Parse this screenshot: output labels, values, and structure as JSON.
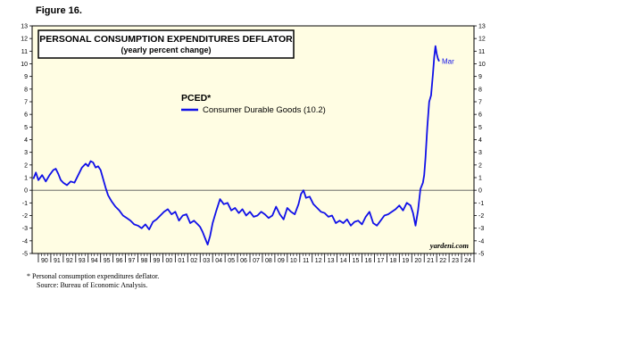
{
  "figure_label": "Figure 16.",
  "chart_data": {
    "type": "line",
    "title": "PERSONAL CONSUMPTION EXPENDITURES DEFLATOR",
    "subtitle": "(yearly percent change)",
    "legend_title": "PCED*",
    "xlabel": "",
    "ylabel": "",
    "ylim": [
      -5,
      13
    ],
    "xlim": [
      1989.5,
      2025.0
    ],
    "y_ticks": [
      -5,
      -4,
      -3,
      -2,
      -1,
      0,
      1,
      2,
      3,
      4,
      5,
      6,
      7,
      8,
      9,
      10,
      11,
      12,
      13
    ],
    "x_tick_labels": [
      "90",
      "91",
      "92",
      "93",
      "94",
      "95",
      "96",
      "97",
      "98",
      "99",
      "00",
      "01",
      "02",
      "03",
      "04",
      "05",
      "06",
      "07",
      "08",
      "09",
      "10",
      "11",
      "12",
      "13",
      "14",
      "15",
      "16",
      "17",
      "18",
      "19",
      "20",
      "21",
      "22",
      "23",
      "24"
    ],
    "zero_line": true,
    "legend_position": "top-center",
    "background_color": "#fffde3",
    "series": [
      {
        "name": "Consumer Durable Goods (10.2)",
        "color": "#1010e8",
        "x": [
          1989.6,
          1989.8,
          1990.0,
          1990.3,
          1990.6,
          1990.9,
          1991.2,
          1991.4,
          1991.6,
          1991.8,
          1992.0,
          1992.3,
          1992.6,
          1992.9,
          1993.2,
          1993.5,
          1993.8,
          1994.0,
          1994.2,
          1994.4,
          1994.6,
          1994.8,
          1995.0,
          1995.2,
          1995.4,
          1995.6,
          1995.9,
          1996.2,
          1996.5,
          1996.8,
          1997.1,
          1997.4,
          1997.7,
          1998.0,
          1998.3,
          1998.6,
          1998.9,
          1999.2,
          1999.5,
          1999.8,
          2000.1,
          2000.4,
          2000.7,
          2001.0,
          2001.3,
          2001.6,
          2001.9,
          2002.2,
          2002.5,
          2002.8,
          2003.0,
          2003.2,
          2003.4,
          2003.6,
          2003.8,
          2004.0,
          2004.3,
          2004.6,
          2004.9,
          2005.2,
          2005.5,
          2005.8,
          2006.1,
          2006.4,
          2006.7,
          2007.0,
          2007.3,
          2007.6,
          2007.9,
          2008.2,
          2008.5,
          2008.8,
          2009.1,
          2009.4,
          2009.7,
          2010.0,
          2010.3,
          2010.6,
          2010.9,
          2011.1,
          2011.3,
          2011.5,
          2011.8,
          2012.1,
          2012.4,
          2012.7,
          2013.0,
          2013.3,
          2013.6,
          2013.9,
          2014.2,
          2014.5,
          2014.8,
          2015.1,
          2015.4,
          2015.7,
          2016.0,
          2016.3,
          2016.6,
          2016.9,
          2017.2,
          2017.5,
          2017.8,
          2018.1,
          2018.4,
          2018.7,
          2019.0,
          2019.3,
          2019.6,
          2019.9,
          2020.1,
          2020.3,
          2020.5,
          2020.7,
          2020.9,
          2021.0,
          2021.1,
          2021.25,
          2021.4,
          2021.55,
          2021.7,
          2021.8,
          2021.9,
          2022.0,
          2022.1,
          2022.2
        ],
        "values": [
          0.9,
          1.4,
          0.8,
          1.2,
          0.7,
          1.2,
          1.6,
          1.7,
          1.3,
          0.8,
          0.6,
          0.4,
          0.7,
          0.6,
          1.2,
          1.8,
          2.1,
          1.9,
          2.3,
          2.2,
          1.8,
          1.9,
          1.6,
          0.9,
          0.2,
          -0.4,
          -0.9,
          -1.3,
          -1.6,
          -2.0,
          -2.2,
          -2.4,
          -2.7,
          -2.8,
          -3.0,
          -2.7,
          -3.1,
          -2.5,
          -2.3,
          -2.0,
          -1.7,
          -1.5,
          -1.9,
          -1.7,
          -2.4,
          -2.0,
          -1.9,
          -2.6,
          -2.4,
          -2.7,
          -2.9,
          -3.3,
          -3.8,
          -4.3,
          -3.6,
          -2.6,
          -1.6,
          -0.7,
          -1.1,
          -1.0,
          -1.6,
          -1.4,
          -1.8,
          -1.5,
          -2.0,
          -1.7,
          -2.1,
          -2.0,
          -1.7,
          -1.9,
          -2.2,
          -2.0,
          -1.3,
          -1.9,
          -2.3,
          -1.4,
          -1.7,
          -1.9,
          -1.1,
          -0.3,
          0.0,
          -0.6,
          -0.5,
          -1.1,
          -1.4,
          -1.7,
          -1.8,
          -2.1,
          -2.0,
          -2.6,
          -2.4,
          -2.6,
          -2.3,
          -2.8,
          -2.5,
          -2.4,
          -2.7,
          -2.1,
          -1.7,
          -2.6,
          -2.8,
          -2.4,
          -2.0,
          -1.9,
          -1.7,
          -1.5,
          -1.2,
          -1.6,
          -1.0,
          -1.2,
          -1.8,
          -2.8,
          -1.6,
          0.1,
          0.6,
          1.2,
          2.5,
          5.0,
          7.0,
          7.5,
          9.2,
          10.5,
          11.4,
          10.8,
          10.4,
          10.2
        ]
      }
    ],
    "last_label": "Mar",
    "source_tag": "yardeni.com"
  },
  "footnote": {
    "line1": "*   Personal consumption expenditures deflator.",
    "line2": "Source: Bureau of Economic Analysis."
  }
}
